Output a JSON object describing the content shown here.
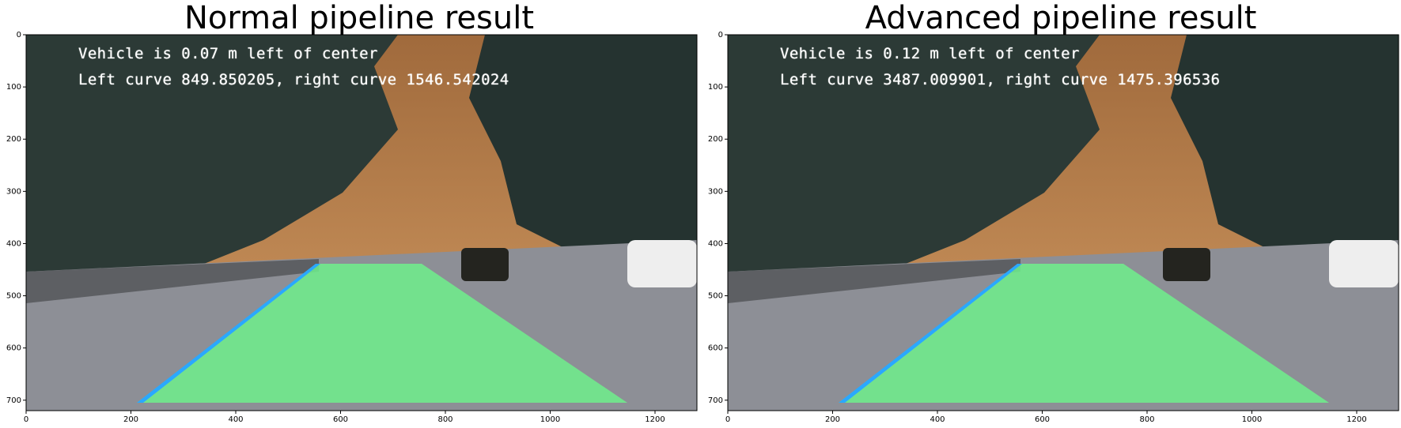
{
  "panels": [
    {
      "title": "Normal pipeline result",
      "overlay_line1": "Vehicle is 0.07 m left of center",
      "overlay_line2": "Left curve 849.850205, right curve 1546.542024"
    },
    {
      "title": "Advanced pipeline result",
      "overlay_line1": "Vehicle is 0.12 m left of center",
      "overlay_line2": "Left curve 3487.009901, right curve 1475.396536"
    }
  ],
  "axes": {
    "x_ticks": [
      "0",
      "200",
      "400",
      "600",
      "800",
      "1000",
      "1200"
    ],
    "y_ticks": [
      "0",
      "100",
      "200",
      "300",
      "400",
      "500",
      "600",
      "700"
    ]
  },
  "colors": {
    "lane_fill": "#6ef08c",
    "left_line": "#2aa8ff",
    "sky": "#b27a48",
    "road": "#8d8f96"
  }
}
